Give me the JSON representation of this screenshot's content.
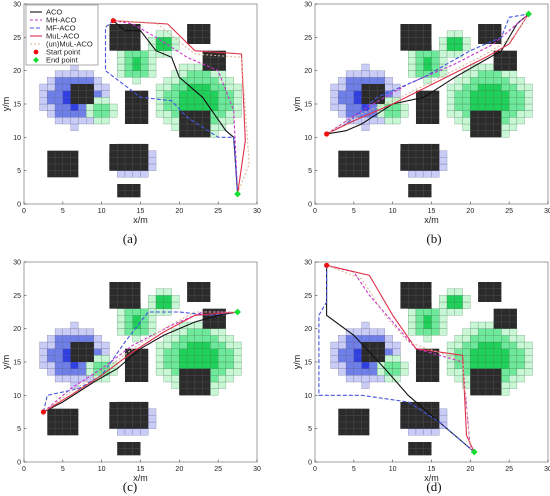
{
  "colors": {
    "obstacle": "#2b2b2b",
    "threat_blue_core": "#2f3fe0",
    "threat_blue_mid": "#6f7fe8",
    "threat_blue_edge": "#c9cdf6",
    "threat_green_core": "#1fd05a",
    "threat_green_mid": "#6ee89a",
    "threat_green_edge": "#c9f7d6",
    "ACO": "#111111",
    "MH-ACO": "#cc33cc",
    "MF-ACO": "#4455dd",
    "MuL-ACO": "#e0304a",
    "(un)MuL-ACO": "#d9b99b",
    "start": "#ee1111",
    "end": "#11dd33"
  },
  "legend": {
    "entries": [
      "ACO",
      "MH-ACO",
      "MF-ACO",
      "MuL-ACO",
      "(un)MuL-ACO",
      "Start point",
      "End point"
    ]
  },
  "chart_data": [
    {
      "type": "line",
      "caption": "(a)",
      "xlabel": "x/m",
      "ylabel": "y/m",
      "xlim": [
        0,
        30
      ],
      "ylim": [
        0,
        30
      ],
      "xticks": [
        0,
        5,
        10,
        15,
        20,
        25,
        30
      ],
      "yticks": [
        0,
        5,
        10,
        15,
        20,
        25,
        30
      ],
      "start": [
        11.5,
        27.5
      ],
      "end": [
        27.5,
        1.5
      ],
      "series": [
        {
          "name": "ACO",
          "points": [
            [
              11.5,
              27.5
            ],
            [
              13,
              26
            ],
            [
              15,
              26
            ],
            [
              17,
              23
            ],
            [
              19,
              22
            ],
            [
              20,
              19
            ],
            [
              23,
              16
            ],
            [
              26,
              11
            ],
            [
              27,
              10
            ],
            [
              27.5,
              1.5
            ]
          ]
        },
        {
          "name": "MH-ACO",
          "points": [
            [
              11.5,
              27.5
            ],
            [
              14,
              27
            ],
            [
              17,
              25
            ],
            [
              21,
              22
            ],
            [
              25,
              20
            ],
            [
              27,
              14
            ],
            [
              27.5,
              1.5
            ]
          ]
        },
        {
          "name": "MF-ACO",
          "points": [
            [
              11.5,
              27.5
            ],
            [
              10.5,
              26.5
            ],
            [
              10.5,
              20
            ],
            [
              15,
              16
            ],
            [
              19,
              15.5
            ],
            [
              21,
              13
            ],
            [
              25,
              10
            ],
            [
              27,
              10
            ],
            [
              27.5,
              1.5
            ]
          ]
        },
        {
          "name": "MuL-ACO",
          "points": [
            [
              11.5,
              27.5
            ],
            [
              18.5,
              27
            ],
            [
              22,
              23
            ],
            [
              28,
              22.5
            ],
            [
              28.5,
              9.5
            ],
            [
              27.5,
              1.5
            ]
          ]
        },
        {
          "name": "(un)MuL-ACO",
          "points": [
            [
              11.5,
              27.5
            ],
            [
              17,
              27.2
            ],
            [
              22,
              22.5
            ],
            [
              28,
              22
            ],
            [
              29,
              6
            ],
            [
              27.5,
              1.5
            ]
          ]
        }
      ]
    },
    {
      "type": "line",
      "caption": "(b)",
      "xlabel": "x/m",
      "ylabel": "y/m",
      "xlim": [
        0,
        30
      ],
      "ylim": [
        0,
        30
      ],
      "xticks": [
        0,
        5,
        10,
        15,
        20,
        25,
        30
      ],
      "yticks": [
        0,
        5,
        10,
        15,
        20,
        25,
        30
      ],
      "start": [
        1.5,
        10.5
      ],
      "end": [
        27.5,
        28.5
      ],
      "series": [
        {
          "name": "ACO",
          "points": [
            [
              1.5,
              10.5
            ],
            [
              4,
              11
            ],
            [
              6,
              12
            ],
            [
              10,
              15
            ],
            [
              14,
              16
            ],
            [
              18,
              19
            ],
            [
              21,
              21
            ],
            [
              24,
              23
            ],
            [
              26,
              27
            ],
            [
              27.5,
              28.5
            ]
          ]
        },
        {
          "name": "MH-ACO",
          "points": [
            [
              1.5,
              10.5
            ],
            [
              6,
              14
            ],
            [
              12,
              18
            ],
            [
              18,
              21
            ],
            [
              23,
              24
            ],
            [
              27.5,
              28.5
            ]
          ]
        },
        {
          "name": "MF-ACO",
          "points": [
            [
              1.5,
              10.5
            ],
            [
              4,
              12
            ],
            [
              8,
              16
            ],
            [
              14,
              19
            ],
            [
              20,
              23
            ],
            [
              24,
              25
            ],
            [
              25,
              28
            ],
            [
              27.5,
              28.5
            ]
          ]
        },
        {
          "name": "MuL-ACO",
          "points": [
            [
              1.5,
              10.5
            ],
            [
              5,
              12.5
            ],
            [
              10,
              15
            ],
            [
              16,
              18.5
            ],
            [
              22,
              22
            ],
            [
              25,
              24
            ],
            [
              27.5,
              28.5
            ]
          ]
        },
        {
          "name": "(un)MuL-ACO",
          "points": [
            [
              1.5,
              10.5
            ],
            [
              5,
              13
            ],
            [
              11,
              16
            ],
            [
              17,
              19.5
            ],
            [
              22,
              22.5
            ],
            [
              25.5,
              25
            ],
            [
              27.5,
              28.5
            ]
          ]
        }
      ]
    },
    {
      "type": "line",
      "caption": "(c)",
      "xlabel": "x/m",
      "ylabel": "y/m",
      "xlim": [
        0,
        30
      ],
      "ylim": [
        0,
        30
      ],
      "xticks": [
        0,
        5,
        10,
        15,
        20,
        25,
        30
      ],
      "yticks": [
        0,
        5,
        10,
        15,
        20,
        25,
        30
      ],
      "start": [
        2.5,
        7.5
      ],
      "end": [
        27.5,
        22.5
      ],
      "series": [
        {
          "name": "ACO",
          "points": [
            [
              2.5,
              7.5
            ],
            [
              5,
              9
            ],
            [
              9,
              12
            ],
            [
              12,
              14
            ],
            [
              15,
              17
            ],
            [
              18,
              19
            ],
            [
              22,
              21
            ],
            [
              25,
              22
            ],
            [
              27.5,
              22.5
            ]
          ]
        },
        {
          "name": "MH-ACO",
          "points": [
            [
              2.5,
              7.5
            ],
            [
              6,
              11
            ],
            [
              10,
              14
            ],
            [
              14,
              17.5
            ],
            [
              19,
              20.5
            ],
            [
              23,
              22.5
            ],
            [
              27.5,
              22.5
            ]
          ]
        },
        {
          "name": "MF-ACO",
          "points": [
            [
              2.5,
              7.5
            ],
            [
              3,
              10
            ],
            [
              7,
              11
            ],
            [
              10,
              13
            ],
            [
              13,
              18
            ],
            [
              16,
              22.5
            ],
            [
              20,
              22.5
            ],
            [
              24,
              22
            ],
            [
              27.5,
              22.5
            ]
          ]
        },
        {
          "name": "MuL-ACO",
          "points": [
            [
              2.5,
              7.5
            ],
            [
              6,
              10
            ],
            [
              10,
              13
            ],
            [
              14,
              16.5
            ],
            [
              18,
              19.5
            ],
            [
              22,
              22
            ],
            [
              27.5,
              22.5
            ]
          ]
        },
        {
          "name": "(un)MuL-ACO",
          "points": [
            [
              2.5,
              7.5
            ],
            [
              6,
              10.5
            ],
            [
              10,
              13.5
            ],
            [
              14,
              17
            ],
            [
              18,
              20
            ],
            [
              22,
              22.5
            ],
            [
              27.5,
              22.5
            ]
          ]
        }
      ]
    },
    {
      "type": "line",
      "caption": "(d)",
      "xlabel": "x/m",
      "ylabel": "y/m",
      "xlim": [
        0,
        30
      ],
      "ylim": [
        0,
        30
      ],
      "xticks": [
        0,
        5,
        10,
        15,
        20,
        25,
        30
      ],
      "yticks": [
        0,
        5,
        10,
        15,
        20,
        25,
        30
      ],
      "start": [
        1.5,
        29.5
      ],
      "end": [
        20.5,
        1.5
      ],
      "series": [
        {
          "name": "ACO",
          "points": [
            [
              1.5,
              29.5
            ],
            [
              1.5,
              22
            ],
            [
              5,
              19
            ],
            [
              9,
              14
            ],
            [
              12,
              10
            ],
            [
              14,
              8
            ],
            [
              17,
              5
            ],
            [
              19,
              3
            ],
            [
              20.5,
              1.5
            ]
          ]
        },
        {
          "name": "MH-ACO",
          "points": [
            [
              1.5,
              29.5
            ],
            [
              5,
              28.5
            ],
            [
              7,
              25
            ],
            [
              10,
              21
            ],
            [
              13,
              17
            ],
            [
              16,
              16
            ],
            [
              19,
              15
            ],
            [
              20,
              2
            ],
            [
              20.5,
              1.5
            ]
          ]
        },
        {
          "name": "MF-ACO",
          "points": [
            [
              1.5,
              29.5
            ],
            [
              1.5,
              24
            ],
            [
              0.5,
              22
            ],
            [
              0.5,
              10
            ],
            [
              6,
              10
            ],
            [
              12,
              9
            ],
            [
              16,
              6
            ],
            [
              19,
              3
            ],
            [
              20.5,
              1.5
            ]
          ]
        },
        {
          "name": "MuL-ACO",
          "points": [
            [
              1.5,
              29.5
            ],
            [
              7,
              28
            ],
            [
              10,
              22
            ],
            [
              13,
              17
            ],
            [
              19,
              16
            ],
            [
              19.5,
              4
            ],
            [
              20.5,
              1.5
            ]
          ]
        },
        {
          "name": "(un)MuL-ACO",
          "points": [
            [
              1.5,
              29.5
            ],
            [
              6,
              27.5
            ],
            [
              9,
              22
            ],
            [
              12,
              18
            ],
            [
              17,
              16
            ],
            [
              19,
              15
            ],
            [
              20,
              2
            ],
            [
              20.5,
              1.5
            ]
          ]
        }
      ]
    }
  ]
}
